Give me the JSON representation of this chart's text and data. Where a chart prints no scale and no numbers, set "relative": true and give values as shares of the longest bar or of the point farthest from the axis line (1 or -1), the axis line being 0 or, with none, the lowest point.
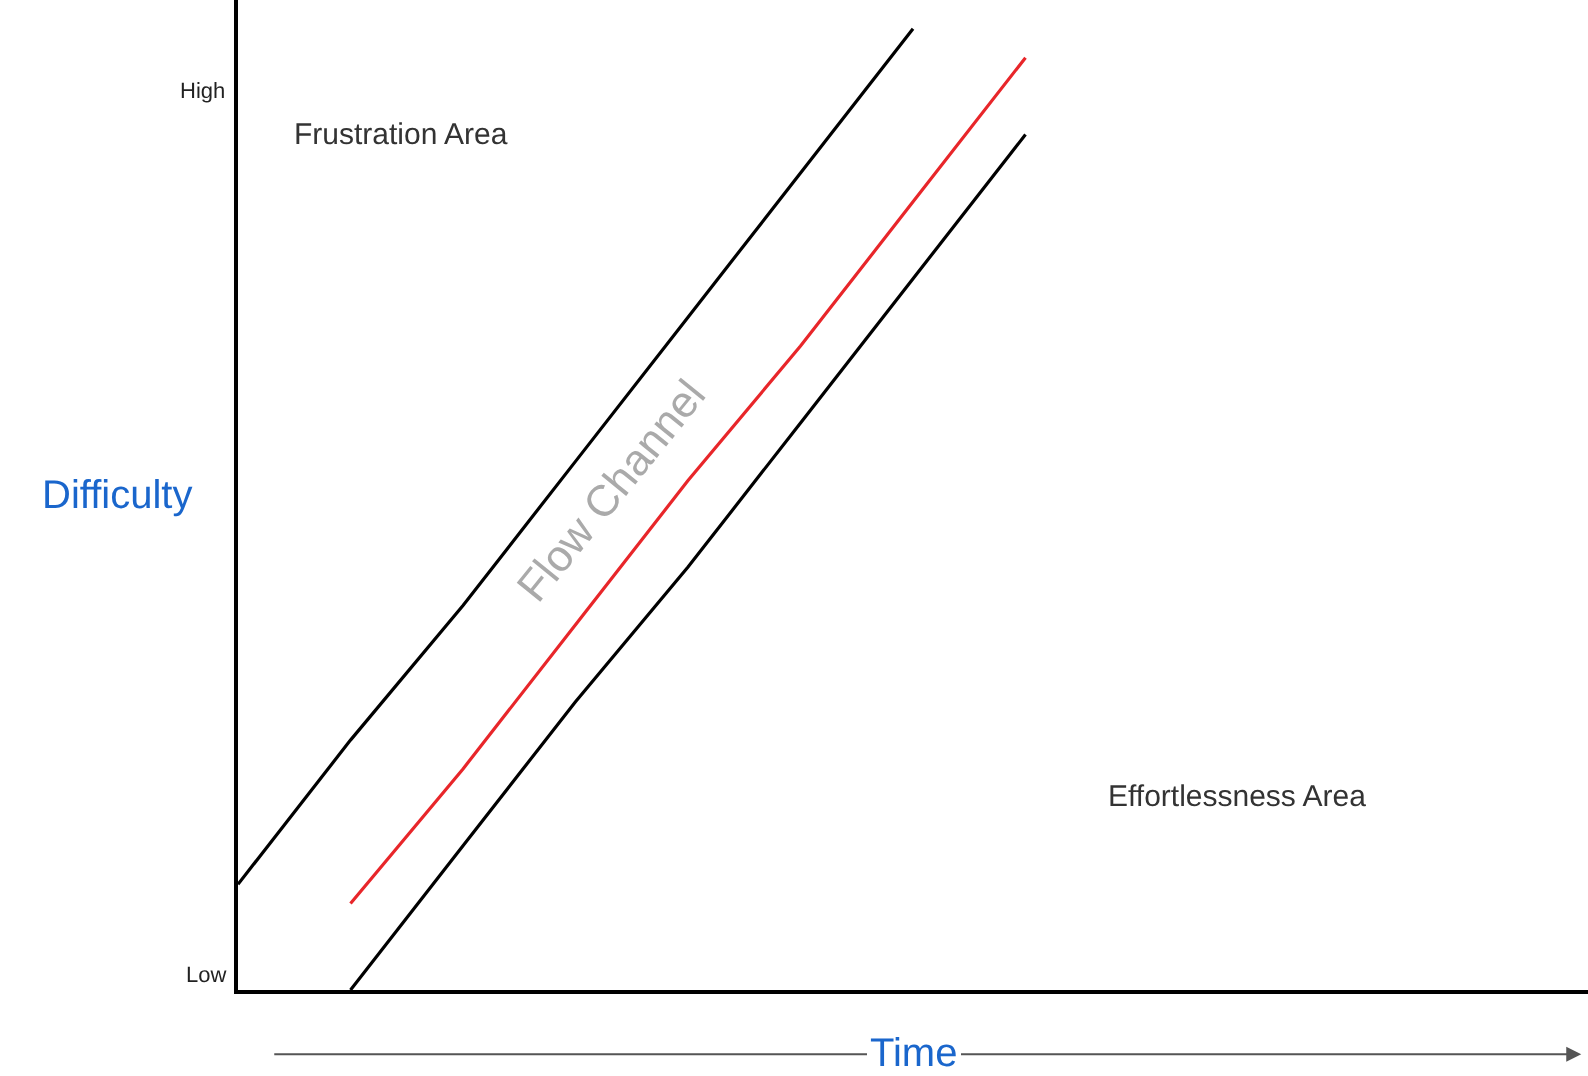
{
  "chart_data": {
    "type": "line",
    "xlabel": "Time",
    "ylabel": "Difficulty",
    "relative": true,
    "categories": [
      null,
      null,
      null,
      null,
      null,
      null,
      null,
      null,
      null,
      null,
      null,
      null,
      null
    ],
    "marker": "none",
    "line_style": "solid",
    "series": [
      {
        "color": "#000000",
        "values": [
          0.11,
          0.26,
          0.4,
          0.55,
          0.7,
          0.85,
          1,
          null,
          null,
          null,
          null,
          null,
          null
        ]
      },
      {
        "color": "#e8262a",
        "values": [
          null,
          0.09,
          0.23,
          0.38,
          0.53,
          0.67,
          0.82,
          0.97,
          null,
          null,
          null,
          null,
          null
        ]
      },
      {
        "color": "#000000",
        "values": [
          null,
          0,
          0.15,
          0.3,
          0.44,
          0.59,
          0.74,
          0.89,
          null,
          null,
          null,
          null,
          null
        ]
      }
    ],
    "annotations": [
      "Frustration Area",
      "Effortlessness Area",
      "Flow Channel",
      "High",
      "Low"
    ]
  }
}
